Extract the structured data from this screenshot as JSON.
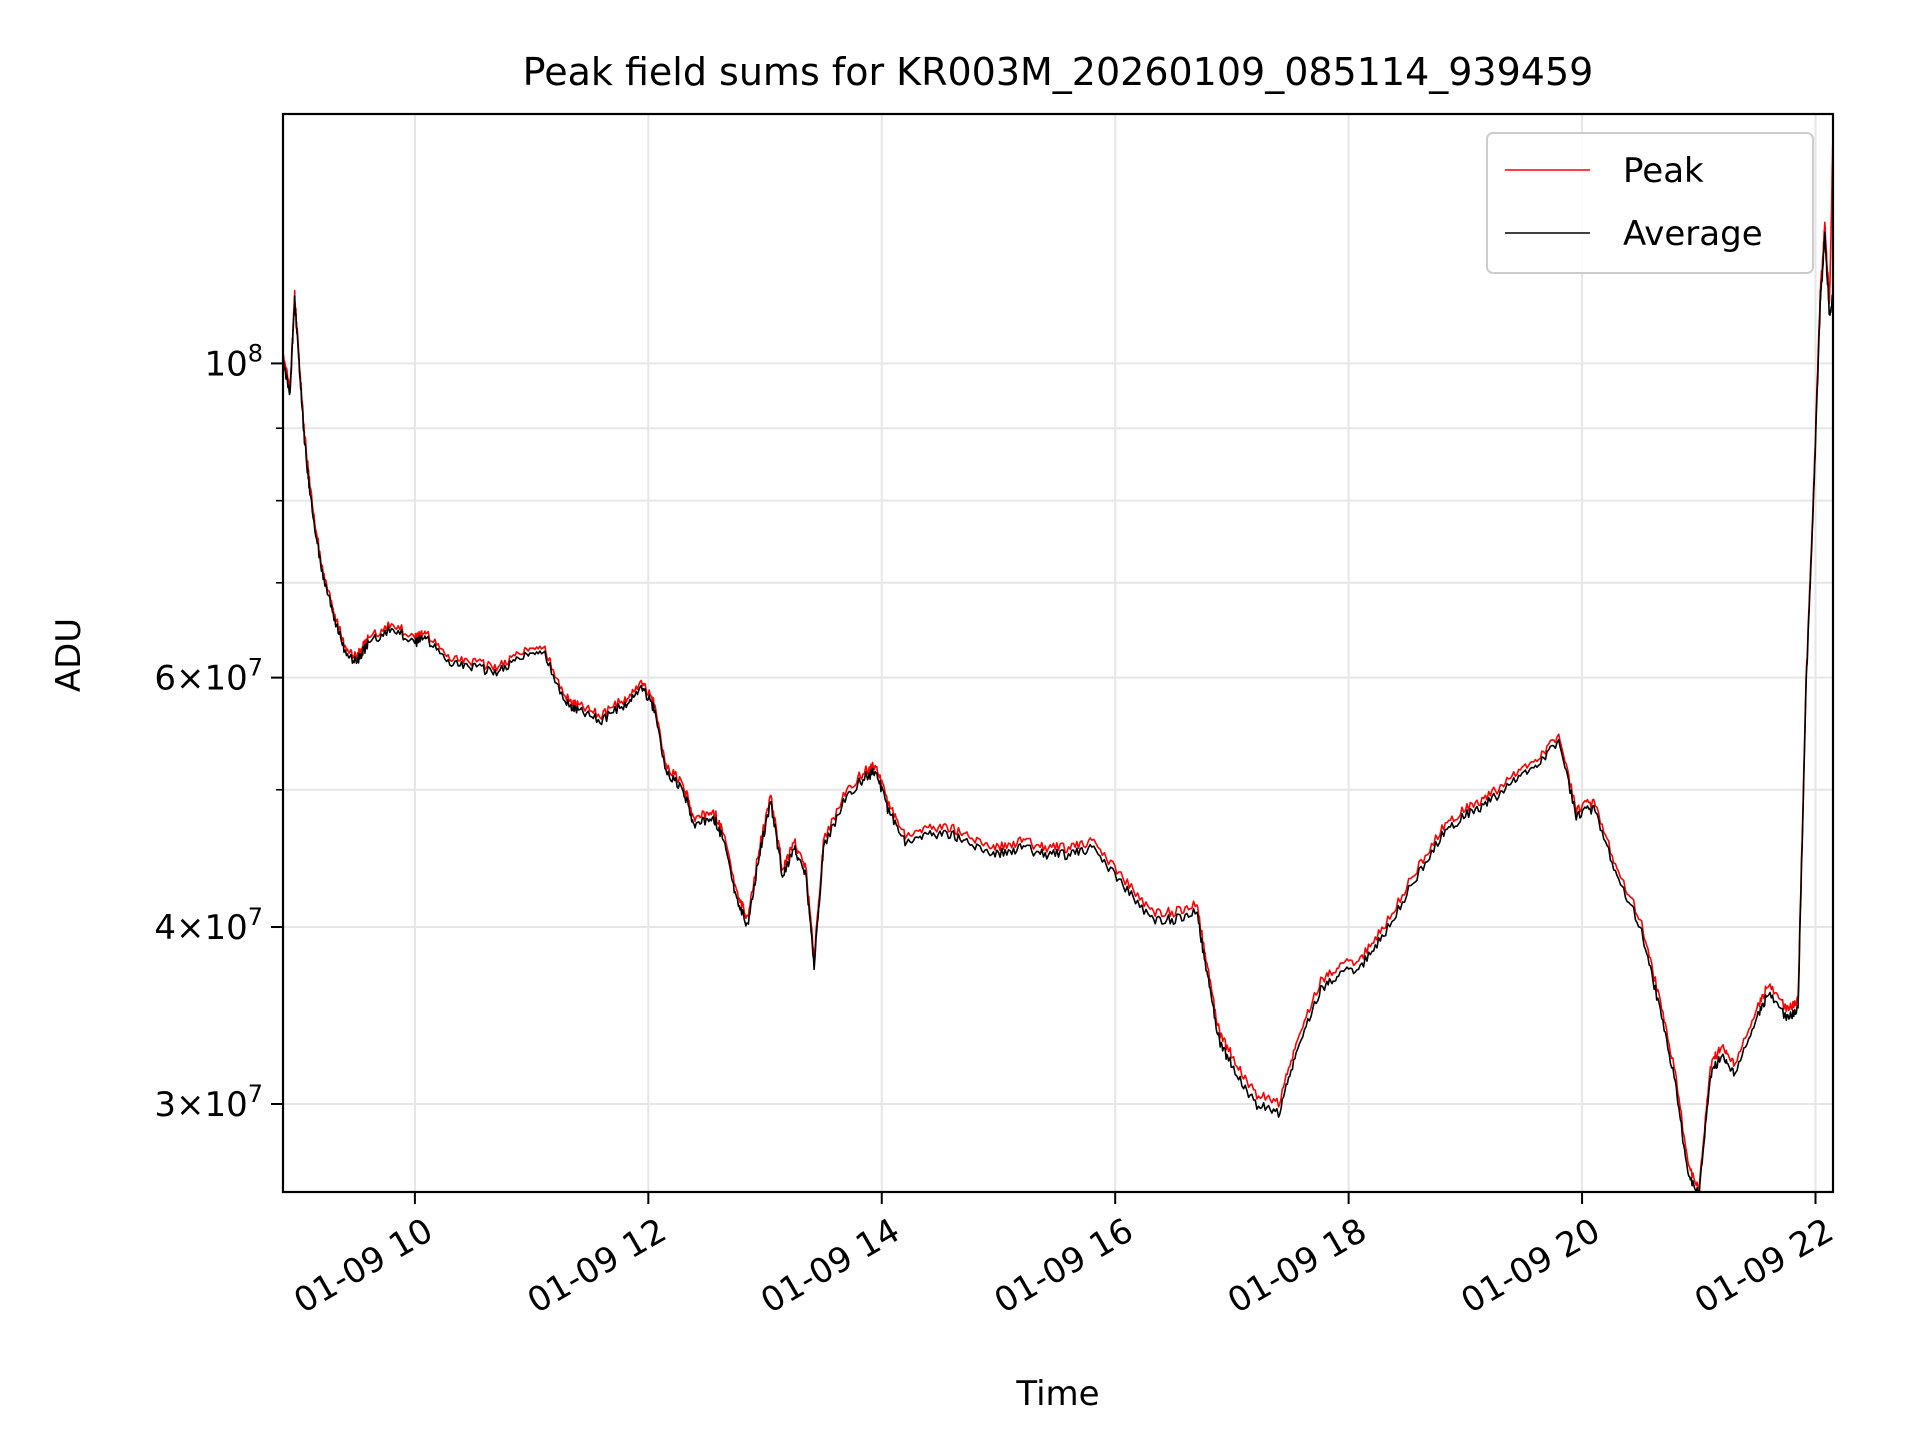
{
  "chart_data": {
    "type": "line",
    "title": "Peak field sums for KR003M_20260109_085114_939459",
    "xlabel": "Time",
    "ylabel": "ADU",
    "x_unit": "hours (01-09)",
    "xlim": [
      8.87,
      22.15
    ],
    "ylim": [
      26000000,
      150000000
    ],
    "y_scale": "log",
    "grid": true,
    "legend_position": "top-right",
    "x_ticks": [
      {
        "value": 10,
        "label": "01-09 10"
      },
      {
        "value": 12,
        "label": "01-09 12"
      },
      {
        "value": 14,
        "label": "01-09 14"
      },
      {
        "value": 16,
        "label": "01-09 16"
      },
      {
        "value": 18,
        "label": "01-09 18"
      },
      {
        "value": 20,
        "label": "01-09 20"
      },
      {
        "value": 22,
        "label": "01-09 22"
      }
    ],
    "y_ticks": [
      {
        "value": 100000000,
        "base": "10",
        "exp": "8"
      },
      {
        "value": 60000000,
        "mant": "6",
        "base": "×10",
        "exp": "7"
      },
      {
        "value": 40000000,
        "mant": "4",
        "base": "×10",
        "exp": "7"
      },
      {
        "value": 30000000,
        "mant": "3",
        "base": "×10",
        "exp": "7"
      }
    ],
    "y_minor_ticks": [
      50000000,
      70000000,
      80000000,
      90000000
    ],
    "series": [
      {
        "name": "Peak",
        "color": "#ff0000",
        "x": [
          8.87,
          8.93,
          8.97,
          9.0,
          9.05,
          9.1,
          9.2,
          9.3,
          9.4,
          9.5,
          9.55,
          9.6,
          9.8,
          10.0,
          10.1,
          10.3,
          10.5,
          10.7,
          10.9,
          11.1,
          11.3,
          11.4,
          11.6,
          11.8,
          11.95,
          12.05,
          12.15,
          12.3,
          12.4,
          12.55,
          12.65,
          12.75,
          12.85,
          12.95,
          13.05,
          13.15,
          13.25,
          13.35,
          13.42,
          13.5,
          13.7,
          13.85,
          13.95,
          14.05,
          14.2,
          14.4,
          14.6,
          14.8,
          15.0,
          15.2,
          15.4,
          15.6,
          15.8,
          16.05,
          16.3,
          16.5,
          16.7,
          16.8,
          16.9,
          17.0,
          17.2,
          17.4,
          17.55,
          17.75,
          17.9,
          18.1,
          18.3,
          18.55,
          18.8,
          19.0,
          19.2,
          19.4,
          19.6,
          19.8,
          19.95,
          20.1,
          20.3,
          20.5,
          20.65,
          20.8,
          20.9,
          21.0,
          21.1,
          21.2,
          21.3,
          21.5,
          21.6,
          21.75,
          21.85,
          21.92,
          21.98,
          22.04,
          22.08,
          22.12,
          22.15
        ],
        "y": [
          101000000,
          96000000,
          112000000,
          103000000,
          90000000,
          82000000,
          72000000,
          67000000,
          63000000,
          62000000,
          63000000,
          64000000,
          65500000,
          64000000,
          64500000,
          62000000,
          61500000,
          61000000,
          62500000,
          63000000,
          58000000,
          57500000,
          56500000,
          58000000,
          59500000,
          57500000,
          52000000,
          50500000,
          47500000,
          48500000,
          46500000,
          42500000,
          40500000,
          45500000,
          49500000,
          44000000,
          46000000,
          44000000,
          38000000,
          46000000,
          50000000,
          51500000,
          52000000,
          49000000,
          46500000,
          47000000,
          47000000,
          46000000,
          45500000,
          46000000,
          45500000,
          45500000,
          46000000,
          43500000,
          41000000,
          41000000,
          41500000,
          37000000,
          33500000,
          32500000,
          30500000,
          30000000,
          33000000,
          36500000,
          37500000,
          38000000,
          40000000,
          43500000,
          47000000,
          48500000,
          49500000,
          51000000,
          52500000,
          54500000,
          48500000,
          49000000,
          44000000,
          40500000,
          36000000,
          31500000,
          27500000,
          26000000,
          32000000,
          33000000,
          32000000,
          35000000,
          36500000,
          35000000,
          35500000,
          60000000,
          80000000,
          112000000,
          125000000,
          110000000,
          145000000
        ]
      },
      {
        "name": "Average",
        "color": "#000000",
        "x": [
          8.87,
          8.93,
          8.97,
          9.0,
          9.05,
          9.1,
          9.2,
          9.3,
          9.4,
          9.5,
          9.55,
          9.6,
          9.8,
          10.0,
          10.1,
          10.3,
          10.5,
          10.7,
          10.9,
          11.1,
          11.3,
          11.4,
          11.6,
          11.8,
          11.95,
          12.05,
          12.15,
          12.3,
          12.4,
          12.55,
          12.65,
          12.75,
          12.85,
          12.95,
          13.05,
          13.15,
          13.25,
          13.35,
          13.42,
          13.5,
          13.7,
          13.85,
          13.95,
          14.05,
          14.2,
          14.4,
          14.6,
          14.8,
          15.0,
          15.2,
          15.4,
          15.6,
          15.8,
          16.05,
          16.3,
          16.5,
          16.7,
          16.8,
          16.9,
          17.0,
          17.2,
          17.4,
          17.55,
          17.75,
          17.9,
          18.1,
          18.3,
          18.55,
          18.8,
          19.0,
          19.2,
          19.4,
          19.6,
          19.8,
          19.95,
          20.1,
          20.3,
          20.5,
          20.65,
          20.8,
          20.9,
          21.0,
          21.1,
          21.2,
          21.3,
          21.5,
          21.6,
          21.75,
          21.85,
          21.92,
          21.98,
          22.04,
          22.08,
          22.12,
          22.15
        ],
        "y": [
          100000000,
          95000000,
          111000000,
          102000000,
          89000000,
          81000000,
          71500000,
          66500000,
          62500000,
          61500000,
          62500000,
          63500000,
          65000000,
          63500000,
          64000000,
          61500000,
          61000000,
          60500000,
          62000000,
          62500000,
          57500000,
          57000000,
          56000000,
          57500000,
          59000000,
          57000000,
          51500000,
          50000000,
          47000000,
          48000000,
          46000000,
          42000000,
          40000000,
          45000000,
          49000000,
          43500000,
          45500000,
          43500000,
          37500000,
          45500000,
          49500000,
          51000000,
          51500000,
          48500000,
          46000000,
          46500000,
          46500000,
          45500000,
          45000000,
          45500000,
          45000000,
          45000000,
          45500000,
          43000000,
          40500000,
          40500000,
          41000000,
          36500000,
          33000000,
          32000000,
          30000000,
          29500000,
          32500000,
          36000000,
          37000000,
          37500000,
          39500000,
          43000000,
          46500000,
          48000000,
          49000000,
          50500000,
          52000000,
          54000000,
          48000000,
          48500000,
          43500000,
          40000000,
          35500000,
          31000000,
          27000000,
          25800000,
          31500000,
          32500000,
          31500000,
          34500000,
          36000000,
          34500000,
          35000000,
          59500000,
          79000000,
          110000000,
          123000000,
          108000000,
          112000000
        ]
      }
    ]
  }
}
